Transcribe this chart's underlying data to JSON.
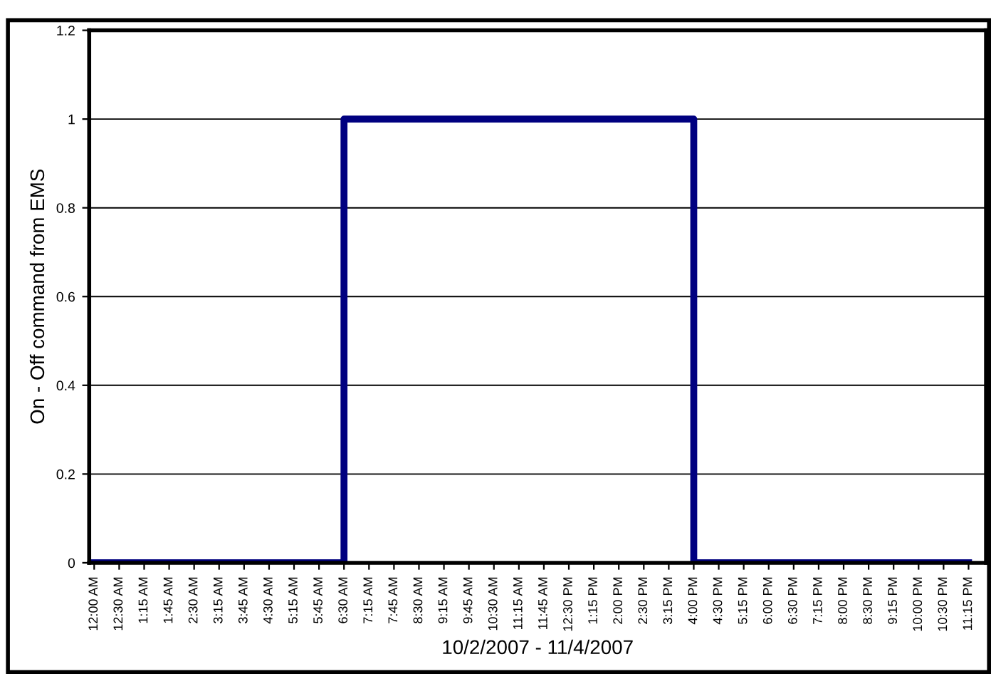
{
  "chart_data": {
    "type": "step",
    "xlabel": "10/2/2007 - 11/4/2007",
    "ylabel": "On - Off command from EMS",
    "categories": [
      "12:00 AM",
      "12:30 AM",
      "1:15 AM",
      "1:45 AM",
      "2:30 AM",
      "3:15 AM",
      "3:45 AM",
      "4:30 AM",
      "5:15 AM",
      "5:45 AM",
      "6:30 AM",
      "7:15 AM",
      "7:45 AM",
      "8:30 AM",
      "9:15 AM",
      "9:45 AM",
      "10:30 AM",
      "11:15 AM",
      "11:45 AM",
      "12:30 PM",
      "1:15 PM",
      "2:00 PM",
      "2:30 PM",
      "3:15 PM",
      "4:00 PM",
      "4:30 PM",
      "5:15 PM",
      "6:00 PM",
      "6:30 PM",
      "7:15 PM",
      "8:00 PM",
      "8:30 PM",
      "9:15 PM",
      "10:00 PM",
      "10:30 PM",
      "11:15 PM"
    ],
    "series": [
      {
        "color": "#000080",
        "values": [
          0,
          0,
          0,
          0,
          0,
          0,
          0,
          0,
          0,
          0,
          1,
          1,
          1,
          1,
          1,
          1,
          1,
          1,
          1,
          1,
          1,
          1,
          1,
          1,
          0,
          0,
          0,
          0,
          0,
          0,
          0,
          0,
          0,
          0,
          0,
          0
        ]
      }
    ],
    "ylim": [
      0,
      1.2
    ],
    "yticks": [
      0,
      0.2,
      0.4,
      0.6,
      0.8,
      1,
      1.2
    ],
    "grid": "y",
    "legend": false
  }
}
